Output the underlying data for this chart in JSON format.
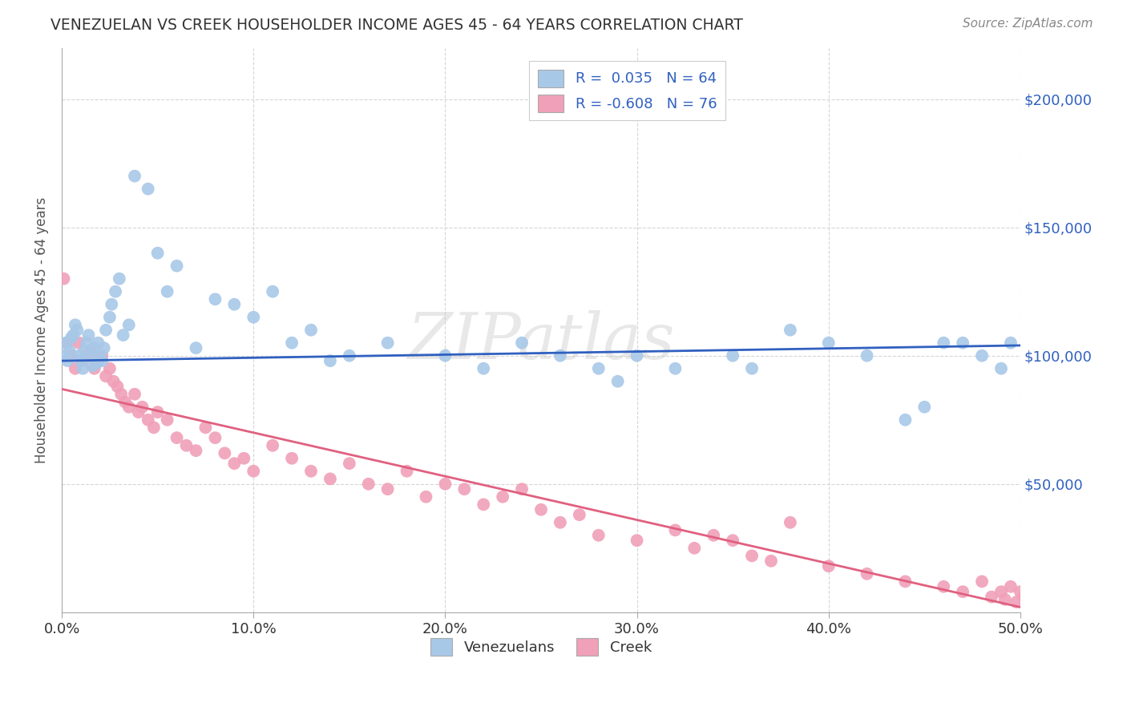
{
  "title": "VENEZUELAN VS CREEK HOUSEHOLDER INCOME AGES 45 - 64 YEARS CORRELATION CHART",
  "source": "Source: ZipAtlas.com",
  "ylabel": "Householder Income Ages 45 - 64 years",
  "xlim": [
    0.0,
    50.0
  ],
  "ylim": [
    0,
    220000
  ],
  "venezuelan_R": 0.035,
  "venezuelan_N": 64,
  "creek_R": -0.608,
  "creek_N": 76,
  "blue_color": "#A8C8E8",
  "pink_color": "#F0A0B8",
  "blue_line_color": "#3060C0",
  "pink_line_color": "#E06080",
  "watermark": "ZIPatlas",
  "yticks": [
    0,
    50000,
    100000,
    150000,
    200000
  ],
  "ytick_labels": [
    "",
    "$50,000",
    "$100,000",
    "$150,000",
    "$200,000"
  ],
  "xticks": [
    0,
    10,
    20,
    30,
    40,
    50
  ],
  "xtick_labels": [
    "0.0%",
    "10.0%",
    "20.0%",
    "30.0%",
    "40.0%",
    "50.0%"
  ],
  "venezuelan_x": [
    0.1,
    0.2,
    0.3,
    0.4,
    0.5,
    0.6,
    0.7,
    0.8,
    0.9,
    1.0,
    1.1,
    1.2,
    1.3,
    1.4,
    1.5,
    1.6,
    1.7,
    1.8,
    1.9,
    2.0,
    2.1,
    2.2,
    2.3,
    2.5,
    2.6,
    2.8,
    3.0,
    3.2,
    3.5,
    3.8,
    4.5,
    5.0,
    5.5,
    6.0,
    7.0,
    8.0,
    9.0,
    10.0,
    11.0,
    12.0,
    13.0,
    14.0,
    15.0,
    17.0,
    20.0,
    22.0,
    24.0,
    26.0,
    28.0,
    29.0,
    30.0,
    32.0,
    35.0,
    36.0,
    38.0,
    40.0,
    42.0,
    44.0,
    45.0,
    46.0,
    47.0,
    48.0,
    49.0,
    49.5
  ],
  "venezuelan_y": [
    100000,
    105000,
    98000,
    102000,
    107000,
    108000,
    112000,
    110000,
    100000,
    98000,
    95000,
    102000,
    105000,
    108000,
    100000,
    96000,
    103000,
    97000,
    105000,
    100000,
    98000,
    103000,
    110000,
    115000,
    120000,
    125000,
    130000,
    108000,
    112000,
    170000,
    165000,
    140000,
    125000,
    135000,
    103000,
    122000,
    120000,
    115000,
    125000,
    105000,
    110000,
    98000,
    100000,
    105000,
    100000,
    95000,
    105000,
    100000,
    95000,
    90000,
    100000,
    95000,
    100000,
    95000,
    110000,
    105000,
    100000,
    75000,
    80000,
    105000,
    105000,
    100000,
    95000,
    105000
  ],
  "creek_x": [
    0.1,
    0.3,
    0.5,
    0.7,
    0.9,
    1.1,
    1.3,
    1.5,
    1.7,
    1.9,
    2.1,
    2.3,
    2.5,
    2.7,
    2.9,
    3.1,
    3.3,
    3.5,
    3.8,
    4.0,
    4.2,
    4.5,
    4.8,
    5.0,
    5.5,
    6.0,
    6.5,
    7.0,
    7.5,
    8.0,
    8.5,
    9.0,
    9.5,
    10.0,
    11.0,
    12.0,
    13.0,
    14.0,
    15.0,
    16.0,
    17.0,
    18.0,
    19.0,
    20.0,
    21.0,
    22.0,
    23.0,
    24.0,
    25.0,
    26.0,
    27.0,
    28.0,
    30.0,
    32.0,
    33.0,
    34.0,
    35.0,
    36.0,
    37.0,
    38.0,
    40.0,
    42.0,
    44.0,
    46.0,
    47.0,
    48.0,
    48.5,
    49.0,
    49.2,
    49.5,
    49.8,
    50.0,
    50.2,
    50.5,
    50.8,
    51.0
  ],
  "creek_y": [
    130000,
    105000,
    100000,
    95000,
    105000,
    98000,
    100000,
    102000,
    95000,
    98000,
    100000,
    92000,
    95000,
    90000,
    88000,
    85000,
    82000,
    80000,
    85000,
    78000,
    80000,
    75000,
    72000,
    78000,
    75000,
    68000,
    65000,
    63000,
    72000,
    68000,
    62000,
    58000,
    60000,
    55000,
    65000,
    60000,
    55000,
    52000,
    58000,
    50000,
    48000,
    55000,
    45000,
    50000,
    48000,
    42000,
    45000,
    48000,
    40000,
    35000,
    38000,
    30000,
    28000,
    32000,
    25000,
    30000,
    28000,
    22000,
    20000,
    35000,
    18000,
    15000,
    12000,
    10000,
    8000,
    12000,
    6000,
    8000,
    5000,
    10000,
    4000,
    8000,
    6000,
    4000,
    2000,
    5000
  ],
  "blue_intercept": 98000,
  "blue_slope": 120,
  "pink_intercept": 87000,
  "pink_slope": -1700
}
